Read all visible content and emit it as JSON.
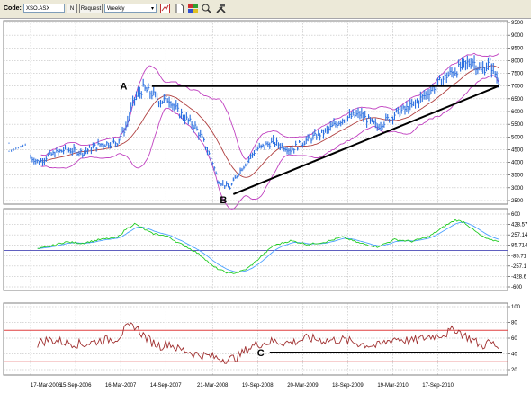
{
  "toolbar": {
    "code_label": "Code:",
    "code_value": "XSO.ASX",
    "n_button": "N",
    "request_button": "Request",
    "period_value": "Weekly",
    "icons": [
      "chart-type-icon",
      "new-page-icon",
      "color-palette-icon",
      "zoom-icon",
      "tools-icon"
    ]
  },
  "colors": {
    "price_bars": "#2a6fe0",
    "bollinger": "#c040c0",
    "moving_average": "#b04040",
    "trendline": "#000000",
    "macd": "#22cc22",
    "signal": "#4aa0ff",
    "zero_line": "#6060c0",
    "rsi": "#a03030",
    "rsi_bands": "#e04040",
    "grid": "#b0b0b0"
  },
  "chart_data": [
    {
      "type": "line",
      "panel": "price",
      "ylim": [
        2500,
        9500
      ],
      "yticks": [
        "9500",
        "9000",
        "8500",
        "8000",
        "7500",
        "7000",
        "6500",
        "6000",
        "5500",
        "5000",
        "4500",
        "4000",
        "3500",
        "3000",
        "2500"
      ],
      "grid": true,
      "anchors_x": [
        0,
        5,
        10,
        20,
        30,
        40,
        50,
        55,
        60,
        65,
        70,
        75,
        80,
        85,
        90,
        95,
        100,
        105,
        108,
        110,
        115,
        120,
        130,
        140,
        150,
        160,
        170,
        180,
        190,
        200,
        210,
        220,
        230,
        240,
        245,
        250,
        255,
        260,
        265,
        270
      ],
      "anchors_close": [
        4200,
        4000,
        4250,
        4500,
        4400,
        4700,
        4800,
        5400,
        6500,
        6900,
        6700,
        6400,
        6500,
        6000,
        5700,
        5400,
        4800,
        4000,
        3300,
        3200,
        3000,
        3600,
        4500,
        4800,
        4500,
        4900,
        5200,
        5700,
        5900,
        5400,
        5900,
        6200,
        6800,
        7400,
        7600,
        7800,
        8000,
        7600,
        7900,
        7200
      ],
      "annotations": [
        {
          "label": "A",
          "x": 60,
          "y": 7000
        },
        {
          "label": "B",
          "x": 117,
          "y": 2750
        },
        {
          "label": "C",
          "panel": "rsi",
          "x": 138,
          "y": 42
        }
      ],
      "lines": [
        {
          "name": "resistance",
          "x1": 70,
          "y1": 7000,
          "x2": 270,
          "y2": 7000
        },
        {
          "name": "support",
          "x1": 117,
          "y1": 2750,
          "x2": 270,
          "y2": 7000
        }
      ]
    },
    {
      "type": "line",
      "panel": "macd",
      "ylim": [
        -600,
        600
      ],
      "yticks": [
        "600",
        "428.57",
        "257.14",
        "85.714",
        "-85.71",
        "-257.1",
        "-428.6",
        "-600"
      ],
      "grid": true,
      "anchors_x": [
        0,
        10,
        20,
        30,
        40,
        50,
        55,
        60,
        65,
        70,
        75,
        80,
        85,
        90,
        95,
        100,
        105,
        110,
        115,
        120,
        125,
        130,
        140,
        150,
        160,
        170,
        180,
        190,
        200,
        210,
        220,
        230,
        240,
        245,
        250,
        255,
        260,
        265,
        270
      ],
      "anchors_macd": [
        0,
        60,
        140,
        120,
        180,
        210,
        350,
        440,
        360,
        280,
        260,
        220,
        130,
        60,
        -20,
        -120,
        -260,
        -330,
        -380,
        -360,
        -300,
        -180,
        80,
        160,
        100,
        140,
        220,
        120,
        60,
        180,
        150,
        230,
        420,
        500,
        470,
        350,
        240,
        170,
        160
      ]
    },
    {
      "type": "line",
      "panel": "rsi",
      "ylim": [
        20,
        100
      ],
      "yticks": [
        "100",
        "80",
        "60",
        "40",
        "20"
      ],
      "bands": [
        70,
        30
      ],
      "grid": true,
      "anchors_x": [
        0,
        10,
        20,
        30,
        40,
        50,
        55,
        60,
        65,
        70,
        75,
        80,
        85,
        90,
        95,
        100,
        105,
        110,
        115,
        120,
        125,
        130,
        140,
        150,
        160,
        170,
        180,
        190,
        200,
        210,
        220,
        230,
        240,
        245,
        250,
        255,
        260,
        265,
        270
      ],
      "anchors_rsi": [
        50,
        58,
        55,
        52,
        57,
        60,
        72,
        76,
        64,
        55,
        50,
        54,
        46,
        44,
        40,
        38,
        36,
        34,
        33,
        37,
        46,
        52,
        56,
        54,
        60,
        57,
        58,
        53,
        50,
        60,
        56,
        62,
        66,
        72,
        64,
        58,
        50,
        55,
        48
      ]
    }
  ],
  "x_axis": {
    "labels": [
      "17-Mar-2006",
      "15-Sep-2006",
      "16-Mar-2007",
      "14-Sep-2007",
      "21-Mar-2008",
      "19-Sep-2008",
      "20-Mar-2009",
      "18-Sep-2009",
      "19-Mar-2010",
      "17-Sep-2010"
    ]
  }
}
